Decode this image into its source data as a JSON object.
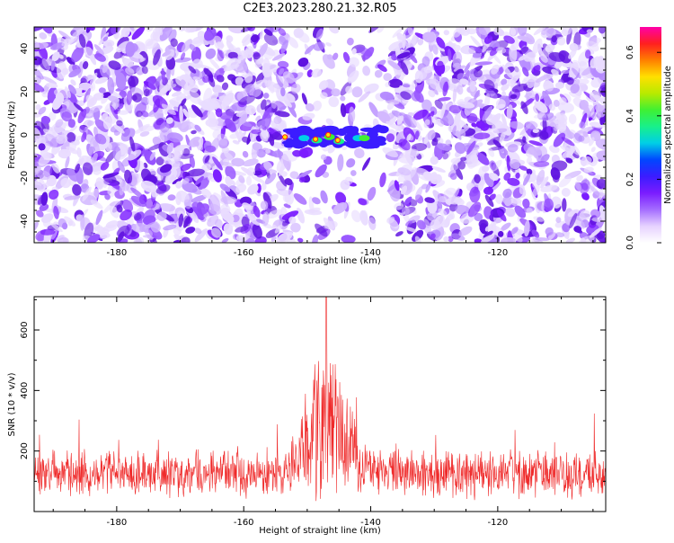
{
  "figure": {
    "title": "C2E3.2023.280.21.32.R05"
  },
  "colors": {
    "signal": "#7a1cff",
    "snr_line": "#ef2a2a",
    "axis": "#000000",
    "background": "#ffffff"
  },
  "chart_data": [
    {
      "type": "heatmap",
      "xlabel": "Height of straight line (km)",
      "ylabel": "Frequency (Hz)",
      "xlim": [
        -193,
        -103
      ],
      "ylim": [
        -50,
        50
      ],
      "xticks": [
        "-180",
        "-160",
        "-140",
        "-120"
      ],
      "yticks": [
        "-40",
        "-20",
        "0",
        "20",
        "40"
      ],
      "xtick_values": [
        -180,
        -160,
        -140,
        -120
      ],
      "ytick_values": [
        -40,
        -20,
        0,
        20,
        40
      ],
      "colorbar": {
        "label": "Normalized spectral amplitude",
        "range": [
          0,
          0.68
        ],
        "ticks": [
          "0.0",
          "0.2",
          "0.4",
          "0.6"
        ],
        "tick_values": [
          0,
          0.2,
          0.4,
          0.6
        ],
        "colors": [
          "#ffffff",
          "#e6d2ff",
          "#a46cff",
          "#7a1cff",
          "#3b1cff",
          "#0047ff",
          "#00cfe6",
          "#18f08b",
          "#3ff033",
          "#b8ea00",
          "#ffe000",
          "#ff7f00",
          "#ff1f1f",
          "#ff00a8"
        ]
      },
      "signal_band": {
        "height_range": [
          -153,
          -138
        ],
        "frequency_range": [
          -5,
          3
        ],
        "peak_amplitude": 0.68
      },
      "quiet_gap": {
        "height_range": [
          -152,
          -137
        ]
      }
    },
    {
      "type": "line",
      "xlabel": "Height of straight line (km)",
      "ylabel": "SNR (10 * v/v)",
      "xlim": [
        -193,
        -103
      ],
      "ylim": [
        0,
        710
      ],
      "xticks": [
        "-180",
        "-160",
        "-140",
        "-120"
      ],
      "yticks": [
        "200",
        "400",
        "600"
      ],
      "xtick_values": [
        -180,
        -160,
        -140,
        -120
      ],
      "ytick_values": [
        200,
        400,
        600
      ],
      "series": [
        {
          "baseline": 125,
          "noise_amplitude": 90,
          "peak_height": -147,
          "peak_value": 712
        }
      ]
    }
  ]
}
